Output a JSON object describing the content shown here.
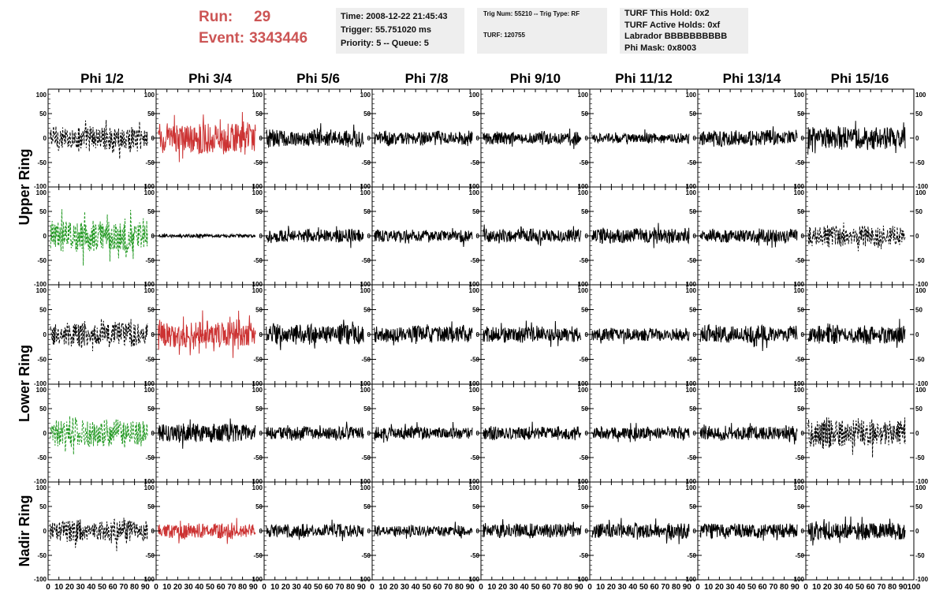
{
  "header": {
    "run_label": "Run:",
    "run_value": "29",
    "event_label": "Event:",
    "event_value": "3343446",
    "info1": {
      "time": "Time: 2008-12-22 21:45:43",
      "trigger": "Trigger: 55.751020 ms",
      "priority": "Priority: 5 -- Queue: 5"
    },
    "info2": {
      "trig": "Trig Num: 55210 -- Trig Type: RF",
      "turf": "TURF: 120755"
    },
    "info3": {
      "this_hold": "TURF This Hold: 0x2",
      "active_holds": "TURF Active Holds: 0xf",
      "labrador": "Labrador BBBBBBBBBB",
      "phi_mask": "Phi Mask: 0x8003"
    }
  },
  "colors": {
    "black": "#000000",
    "red": "#cc3333",
    "green": "#229922",
    "header_red": "#cc5555",
    "box_bg": "#eeeeee"
  },
  "chart_data": {
    "type": "line",
    "columns": [
      "Phi 1/2",
      "Phi 3/4",
      "Phi 5/6",
      "Phi 7/8",
      "Phi 9/10",
      "Phi 11/12",
      "Phi 13/14",
      "Phi 15/16"
    ],
    "ring_labels": [
      "Upper Ring",
      "Lower Ring",
      "Nadir Ring"
    ],
    "ring_row_spans": [
      [
        0,
        1
      ],
      [
        2,
        3
      ],
      [
        4,
        4
      ]
    ],
    "ylim": [
      -100,
      100
    ],
    "xlim": [
      0,
      100
    ],
    "y_ticks": [
      100,
      50,
      0,
      -50,
      -100
    ],
    "x_ticks": [
      0,
      10,
      20,
      30,
      40,
      50,
      60,
      70,
      80,
      90,
      100
    ],
    "panels": [
      {
        "row": 0,
        "col": 0,
        "color": "black",
        "style": "dashed",
        "amp": 22
      },
      {
        "row": 0,
        "col": 1,
        "color": "red",
        "style": "solid",
        "amp": 28
      },
      {
        "row": 0,
        "col": 2,
        "color": "black",
        "style": "solid",
        "amp": 16
      },
      {
        "row": 0,
        "col": 3,
        "color": "black",
        "style": "solid",
        "amp": 13
      },
      {
        "row": 0,
        "col": 4,
        "color": "black",
        "style": "solid",
        "amp": 12
      },
      {
        "row": 0,
        "col": 5,
        "color": "black",
        "style": "solid",
        "amp": 9
      },
      {
        "row": 0,
        "col": 6,
        "color": "black",
        "style": "solid",
        "amp": 14
      },
      {
        "row": 0,
        "col": 7,
        "color": "black",
        "style": "solid",
        "amp": 20
      },
      {
        "row": 1,
        "col": 0,
        "color": "green",
        "style": "dashed",
        "amp": 30
      },
      {
        "row": 1,
        "col": 1,
        "color": "black",
        "style": "solid",
        "amp": 3
      },
      {
        "row": 1,
        "col": 2,
        "color": "black",
        "style": "solid",
        "amp": 12
      },
      {
        "row": 1,
        "col": 3,
        "color": "black",
        "style": "solid",
        "amp": 11
      },
      {
        "row": 1,
        "col": 4,
        "color": "black",
        "style": "solid",
        "amp": 12
      },
      {
        "row": 1,
        "col": 5,
        "color": "black",
        "style": "solid",
        "amp": 14
      },
      {
        "row": 1,
        "col": 6,
        "color": "black",
        "style": "solid",
        "amp": 12
      },
      {
        "row": 1,
        "col": 7,
        "color": "black",
        "style": "dashed",
        "amp": 20
      },
      {
        "row": 2,
        "col": 0,
        "color": "black",
        "style": "dashed",
        "amp": 22
      },
      {
        "row": 2,
        "col": 1,
        "color": "red",
        "style": "solid",
        "amp": 25
      },
      {
        "row": 2,
        "col": 2,
        "color": "black",
        "style": "solid",
        "amp": 18
      },
      {
        "row": 2,
        "col": 3,
        "color": "black",
        "style": "solid",
        "amp": 15
      },
      {
        "row": 2,
        "col": 4,
        "color": "black",
        "style": "solid",
        "amp": 14
      },
      {
        "row": 2,
        "col": 5,
        "color": "black",
        "style": "solid",
        "amp": 11
      },
      {
        "row": 2,
        "col": 6,
        "color": "black",
        "style": "solid",
        "amp": 15
      },
      {
        "row": 2,
        "col": 7,
        "color": "black",
        "style": "solid",
        "amp": 16
      },
      {
        "row": 3,
        "col": 0,
        "color": "green",
        "style": "dashed",
        "amp": 26
      },
      {
        "row": 3,
        "col": 1,
        "color": "black",
        "style": "solid",
        "amp": 17
      },
      {
        "row": 3,
        "col": 2,
        "color": "black",
        "style": "solid",
        "amp": 12
      },
      {
        "row": 3,
        "col": 3,
        "color": "black",
        "style": "solid",
        "amp": 11
      },
      {
        "row": 3,
        "col": 4,
        "color": "black",
        "style": "solid",
        "amp": 12
      },
      {
        "row": 3,
        "col": 5,
        "color": "black",
        "style": "solid",
        "amp": 11
      },
      {
        "row": 3,
        "col": 6,
        "color": "black",
        "style": "solid",
        "amp": 13
      },
      {
        "row": 3,
        "col": 7,
        "color": "black",
        "style": "dashed",
        "amp": 26
      },
      {
        "row": 4,
        "col": 0,
        "color": "black",
        "style": "dashed",
        "amp": 20
      },
      {
        "row": 4,
        "col": 1,
        "color": "red",
        "style": "solid",
        "amp": 14
      },
      {
        "row": 4,
        "col": 2,
        "color": "black",
        "style": "solid",
        "amp": 12
      },
      {
        "row": 4,
        "col": 3,
        "color": "black",
        "style": "solid",
        "amp": 10
      },
      {
        "row": 4,
        "col": 4,
        "color": "black",
        "style": "solid",
        "amp": 13
      },
      {
        "row": 4,
        "col": 5,
        "color": "black",
        "style": "solid",
        "amp": 14
      },
      {
        "row": 4,
        "col": 6,
        "color": "black",
        "style": "solid",
        "amp": 13
      },
      {
        "row": 4,
        "col": 7,
        "color": "black",
        "style": "solid",
        "amp": 16
      }
    ]
  }
}
